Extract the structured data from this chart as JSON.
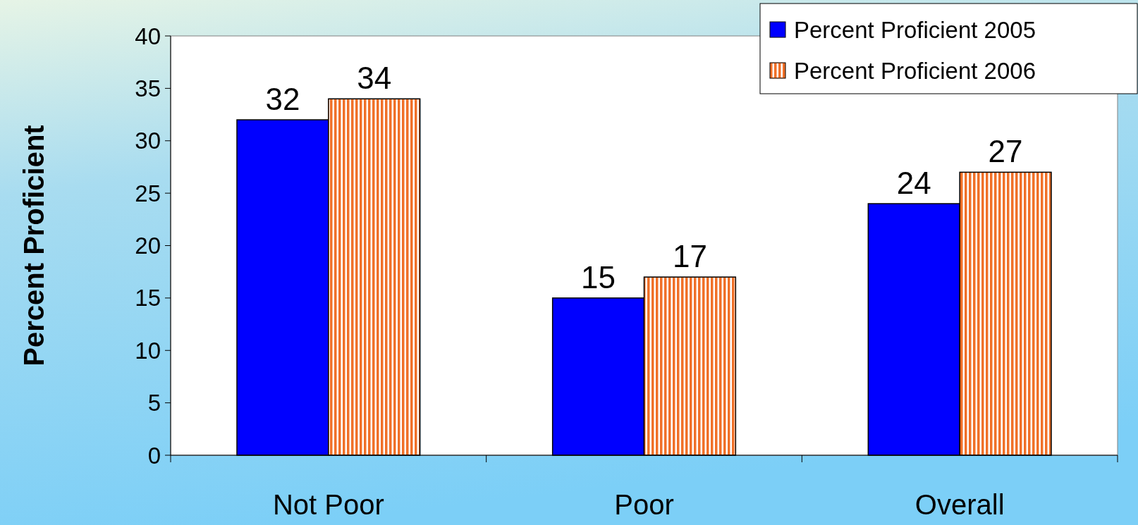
{
  "chart_data": {
    "type": "bar",
    "ylabel": "Percent Proficient",
    "categories": [
      "Not Poor",
      "Poor",
      "Overall"
    ],
    "series": [
      {
        "name": "Percent Proficient 2005",
        "color": "#0000ff",
        "values": [
          32,
          15,
          24
        ]
      },
      {
        "name": "Percent Proficient 2006",
        "color": "#f07028",
        "values": [
          34,
          17,
          27
        ]
      }
    ],
    "ylim": [
      0,
      40
    ],
    "yticks": [
      0,
      5,
      10,
      15,
      20,
      25,
      30,
      35,
      40
    ],
    "data_labels": true,
    "legend": "top right"
  }
}
